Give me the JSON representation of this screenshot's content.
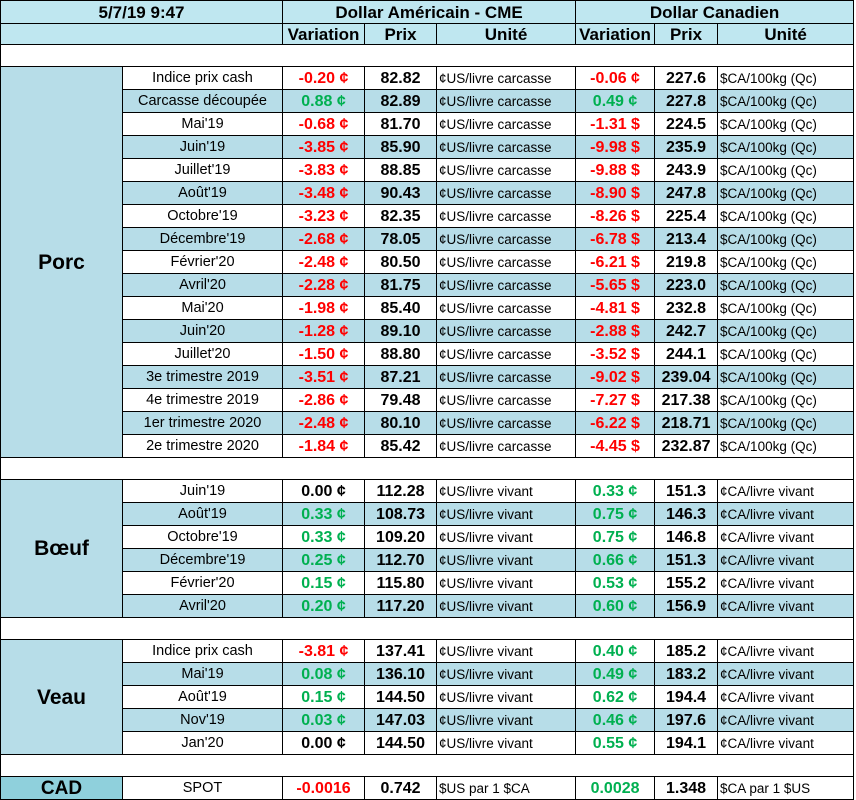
{
  "header": {
    "datetime": "5/7/19 9:47",
    "usd_title": "Dollar Américain - CME",
    "cad_title": "Dollar Canadien",
    "col_variation": "Variation",
    "col_prix": "Prix",
    "col_unite": "Unité"
  },
  "sections": [
    {
      "name": "Porc",
      "rows": [
        {
          "label": "Indice prix cash",
          "usd_var": "-0.20 ¢",
          "usd_sign": "neg",
          "usd_price": "82.82",
          "usd_unit": "¢US/livre carcasse",
          "cad_var": "-0.06 ¢",
          "cad_sign": "neg",
          "cad_price": "227.6",
          "cad_unit": "$CA/100kg (Qc)"
        },
        {
          "label": "Carcasse découpée",
          "usd_var": "0.88 ¢",
          "usd_sign": "pos",
          "usd_price": "82.89",
          "usd_unit": "¢US/livre carcasse",
          "cad_var": "0.49 ¢",
          "cad_sign": "pos",
          "cad_price": "227.8",
          "cad_unit": "$CA/100kg (Qc)"
        },
        {
          "label": "Mai'19",
          "usd_var": "-0.68 ¢",
          "usd_sign": "neg",
          "usd_price": "81.70",
          "usd_unit": "¢US/livre carcasse",
          "cad_var": "-1.31 $",
          "cad_sign": "neg",
          "cad_price": "224.5",
          "cad_unit": "$CA/100kg (Qc)"
        },
        {
          "label": "Juin'19",
          "usd_var": "-3.85 ¢",
          "usd_sign": "neg",
          "usd_price": "85.90",
          "usd_unit": "¢US/livre carcasse",
          "cad_var": "-9.98 $",
          "cad_sign": "neg",
          "cad_price": "235.9",
          "cad_unit": "$CA/100kg (Qc)"
        },
        {
          "label": "Juillet'19",
          "usd_var": "-3.83 ¢",
          "usd_sign": "neg",
          "usd_price": "88.85",
          "usd_unit": "¢US/livre carcasse",
          "cad_var": "-9.88 $",
          "cad_sign": "neg",
          "cad_price": "243.9",
          "cad_unit": "$CA/100kg (Qc)"
        },
        {
          "label": "Août'19",
          "usd_var": "-3.48 ¢",
          "usd_sign": "neg",
          "usd_price": "90.43",
          "usd_unit": "¢US/livre carcasse",
          "cad_var": "-8.90 $",
          "cad_sign": "neg",
          "cad_price": "247.8",
          "cad_unit": "$CA/100kg (Qc)"
        },
        {
          "label": "Octobre'19",
          "usd_var": "-3.23 ¢",
          "usd_sign": "neg",
          "usd_price": "82.35",
          "usd_unit": "¢US/livre carcasse",
          "cad_var": "-8.26 $",
          "cad_sign": "neg",
          "cad_price": "225.4",
          "cad_unit": "$CA/100kg (Qc)"
        },
        {
          "label": "Décembre'19",
          "usd_var": "-2.68 ¢",
          "usd_sign": "neg",
          "usd_price": "78.05",
          "usd_unit": "¢US/livre carcasse",
          "cad_var": "-6.78 $",
          "cad_sign": "neg",
          "cad_price": "213.4",
          "cad_unit": "$CA/100kg (Qc)"
        },
        {
          "label": "Février'20",
          "usd_var": "-2.48 ¢",
          "usd_sign": "neg",
          "usd_price": "80.50",
          "usd_unit": "¢US/livre carcasse",
          "cad_var": "-6.21 $",
          "cad_sign": "neg",
          "cad_price": "219.8",
          "cad_unit": "$CA/100kg (Qc)"
        },
        {
          "label": "Avril'20",
          "usd_var": "-2.28 ¢",
          "usd_sign": "neg",
          "usd_price": "81.75",
          "usd_unit": "¢US/livre carcasse",
          "cad_var": "-5.65 $",
          "cad_sign": "neg",
          "cad_price": "223.0",
          "cad_unit": "$CA/100kg (Qc)"
        },
        {
          "label": "Mai'20",
          "usd_var": "-1.98 ¢",
          "usd_sign": "neg",
          "usd_price": "85.40",
          "usd_unit": "¢US/livre carcasse",
          "cad_var": "-4.81 $",
          "cad_sign": "neg",
          "cad_price": "232.8",
          "cad_unit": "$CA/100kg (Qc)"
        },
        {
          "label": "Juin'20",
          "usd_var": "-1.28 ¢",
          "usd_sign": "neg",
          "usd_price": "89.10",
          "usd_unit": "¢US/livre carcasse",
          "cad_var": "-2.88 $",
          "cad_sign": "neg",
          "cad_price": "242.7",
          "cad_unit": "$CA/100kg (Qc)"
        },
        {
          "label": "Juillet'20",
          "usd_var": "-1.50 ¢",
          "usd_sign": "neg",
          "usd_price": "88.80",
          "usd_unit": "¢US/livre carcasse",
          "cad_var": "-3.52 $",
          "cad_sign": "neg",
          "cad_price": "244.1",
          "cad_unit": "$CA/100kg (Qc)"
        },
        {
          "label": "3e trimestre 2019",
          "usd_var": "-3.51 ¢",
          "usd_sign": "neg",
          "usd_price": "87.21",
          "usd_unit": "¢US/livre carcasse",
          "cad_var": "-9.02 $",
          "cad_sign": "neg",
          "cad_price": "239.04",
          "cad_unit": "$CA/100kg (Qc)"
        },
        {
          "label": "4e trimestre 2019",
          "usd_var": "-2.86 ¢",
          "usd_sign": "neg",
          "usd_price": "79.48",
          "usd_unit": "¢US/livre carcasse",
          "cad_var": "-7.27 $",
          "cad_sign": "neg",
          "cad_price": "217.38",
          "cad_unit": "$CA/100kg (Qc)"
        },
        {
          "label": "1er trimestre 2020",
          "usd_var": "-2.48 ¢",
          "usd_sign": "neg",
          "usd_price": "80.10",
          "usd_unit": "¢US/livre carcasse",
          "cad_var": "-6.22 $",
          "cad_sign": "neg",
          "cad_price": "218.71",
          "cad_unit": "$CA/100kg (Qc)"
        },
        {
          "label": "2e trimestre 2020",
          "usd_var": "-1.84 ¢",
          "usd_sign": "neg",
          "usd_price": "85.42",
          "usd_unit": "¢US/livre carcasse",
          "cad_var": "-4.45 $",
          "cad_sign": "neg",
          "cad_price": "232.87",
          "cad_unit": "$CA/100kg (Qc)"
        }
      ]
    },
    {
      "name": "Bœuf",
      "rows": [
        {
          "label": "Juin'19",
          "usd_var": "0.00 ¢",
          "usd_sign": "zero",
          "usd_price": "112.28",
          "usd_unit": "¢US/livre vivant",
          "cad_var": "0.33 ¢",
          "cad_sign": "pos",
          "cad_price": "151.3",
          "cad_unit": "¢CA/livre vivant"
        },
        {
          "label": "Août'19",
          "usd_var": "0.33 ¢",
          "usd_sign": "pos",
          "usd_price": "108.73",
          "usd_unit": "¢US/livre vivant",
          "cad_var": "0.75 ¢",
          "cad_sign": "pos",
          "cad_price": "146.3",
          "cad_unit": "¢CA/livre vivant"
        },
        {
          "label": "Octobre'19",
          "usd_var": "0.33 ¢",
          "usd_sign": "pos",
          "usd_price": "109.20",
          "usd_unit": "¢US/livre vivant",
          "cad_var": "0.75 ¢",
          "cad_sign": "pos",
          "cad_price": "146.8",
          "cad_unit": "¢CA/livre vivant"
        },
        {
          "label": "Décembre'19",
          "usd_var": "0.25 ¢",
          "usd_sign": "pos",
          "usd_price": "112.70",
          "usd_unit": "¢US/livre vivant",
          "cad_var": "0.66 ¢",
          "cad_sign": "pos",
          "cad_price": "151.3",
          "cad_unit": "¢CA/livre vivant"
        },
        {
          "label": "Février'20",
          "usd_var": "0.15 ¢",
          "usd_sign": "pos",
          "usd_price": "115.80",
          "usd_unit": "¢US/livre vivant",
          "cad_var": "0.53 ¢",
          "cad_sign": "pos",
          "cad_price": "155.2",
          "cad_unit": "¢CA/livre vivant"
        },
        {
          "label": "Avril'20",
          "usd_var": "0.20 ¢",
          "usd_sign": "pos",
          "usd_price": "117.20",
          "usd_unit": "¢US/livre vivant",
          "cad_var": "0.60 ¢",
          "cad_sign": "pos",
          "cad_price": "156.9",
          "cad_unit": "¢CA/livre vivant"
        }
      ]
    },
    {
      "name": "Veau",
      "rows": [
        {
          "label": "Indice prix cash",
          "usd_var": "-3.81 ¢",
          "usd_sign": "neg",
          "usd_price": "137.41",
          "usd_unit": "¢US/livre vivant",
          "cad_var": "0.40 ¢",
          "cad_sign": "pos",
          "cad_price": "185.2",
          "cad_unit": "¢CA/livre vivant"
        },
        {
          "label": "Mai'19",
          "usd_var": "0.08 ¢",
          "usd_sign": "pos",
          "usd_price": "136.10",
          "usd_unit": "¢US/livre vivant",
          "cad_var": "0.49 ¢",
          "cad_sign": "pos",
          "cad_price": "183.2",
          "cad_unit": "¢CA/livre vivant"
        },
        {
          "label": "Août'19",
          "usd_var": "0.15 ¢",
          "usd_sign": "pos",
          "usd_price": "144.50",
          "usd_unit": "¢US/livre vivant",
          "cad_var": "0.62 ¢",
          "cad_sign": "pos",
          "cad_price": "194.4",
          "cad_unit": "¢CA/livre vivant"
        },
        {
          "label": "Nov'19",
          "usd_var": "0.03 ¢",
          "usd_sign": "pos",
          "usd_price": "147.03",
          "usd_unit": "¢US/livre vivant",
          "cad_var": "0.46 ¢",
          "cad_sign": "pos",
          "cad_price": "197.6",
          "cad_unit": "¢CA/livre vivant"
        },
        {
          "label": "Jan'20",
          "usd_var": "0.00 ¢",
          "usd_sign": "zero",
          "usd_price": "144.50",
          "usd_unit": "¢US/livre vivant",
          "cad_var": "0.55 ¢",
          "cad_sign": "pos",
          "cad_price": "194.1",
          "cad_unit": "¢CA/livre vivant"
        }
      ]
    }
  ],
  "cad": {
    "name": "CAD",
    "label": "SPOT",
    "usd_var": "-0.0016",
    "usd_sign": "neg",
    "usd_price": "0.742",
    "usd_unit": "$US par 1 $CA",
    "cad_var": "0.0028",
    "cad_sign": "pos",
    "cad_price": "1.348",
    "cad_unit": "$CA par 1 $US"
  }
}
